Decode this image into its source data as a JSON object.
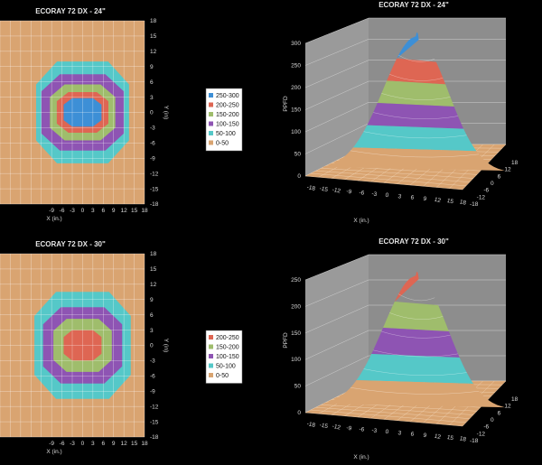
{
  "colors": {
    "band_0_50": "#d9a471",
    "band_50_100": "#55c8c8",
    "band_100_150": "#8e54b3",
    "band_150_200": "#9fbd6c",
    "band_200_250": "#de6653",
    "band_250_300": "#3d8fd6",
    "grid": "#ffffff",
    "wall": "#8d8d8d"
  },
  "chart_data": [
    {
      "type": "heatmap",
      "title": "ECORAY 72 DX - 24\"",
      "xlabel": "X (in.)",
      "ylabel": "Y (in)",
      "x_ticks": [
        "-9",
        "-6",
        "-3",
        "0",
        "3",
        "6",
        "9",
        "12",
        "15",
        "18"
      ],
      "y_ticks": [
        "18",
        "15",
        "12",
        "9",
        "6",
        "3",
        "0",
        "-3",
        "-6",
        "-9",
        "-12",
        "-15",
        "-18"
      ],
      "xlim": [
        -18,
        18
      ],
      "ylim": [
        -18,
        18
      ],
      "contours": [
        {
          "level": "0-50",
          "rx": 99,
          "ry": 99
        },
        {
          "level": "50-100",
          "rx": 13.5,
          "ry": 10
        },
        {
          "level": "100-150",
          "rx": 12,
          "ry": 7.5
        },
        {
          "level": "150-200",
          "rx": 9.5,
          "ry": 5.5
        },
        {
          "level": "200-250",
          "rx": 7.5,
          "ry": 4
        },
        {
          "level": "250-300",
          "rx": 5.5,
          "ry": 2.8
        }
      ]
    },
    {
      "type": "legend",
      "entries": [
        "250-300",
        "200-250",
        "150-200",
        "100-150",
        "50-100",
        "0-50"
      ]
    },
    {
      "type": "area",
      "title": "ECORAY 72 DX - 24\"",
      "zlabel": "PPFD",
      "xlabel": "X (in.)",
      "z_ticks": [
        "0",
        "50",
        "100",
        "150",
        "200",
        "250",
        "300"
      ],
      "x_ticks": [
        "-18",
        "-15",
        "-12",
        "-9",
        "-6",
        "-3",
        "0",
        "3",
        "6",
        "9",
        "12",
        "15",
        "18"
      ],
      "y_ticks": [
        "-18",
        "-12",
        "-6",
        "0",
        "6",
        "12",
        "18"
      ],
      "zlim": [
        0,
        300
      ],
      "peak": 300,
      "bands": [
        "0-50",
        "50-100",
        "100-150",
        "150-200",
        "200-250",
        "250-300"
      ]
    },
    {
      "type": "heatmap",
      "title": "ECORAY 72 DX - 30\"",
      "xlabel": "X (in.)",
      "ylabel": "Y (in)",
      "x_ticks": [
        "-9",
        "-6",
        "-3",
        "0",
        "3",
        "6",
        "9",
        "12",
        "15",
        "18"
      ],
      "y_ticks": [
        "18",
        "15",
        "12",
        "9",
        "6",
        "3",
        "0",
        "-3",
        "-6",
        "-9",
        "-12",
        "-15",
        "-18"
      ],
      "xlim": [
        -18,
        18
      ],
      "ylim": [
        -18,
        18
      ],
      "contours": [
        {
          "level": "0-50",
          "rx": 99,
          "ry": 99
        },
        {
          "level": "50-100",
          "rx": 14,
          "ry": 10.5
        },
        {
          "level": "100-150",
          "rx": 11.5,
          "ry": 7.5
        },
        {
          "level": "150-200",
          "rx": 8.5,
          "ry": 5.2
        },
        {
          "level": "200-250",
          "rx": 5.5,
          "ry": 3
        }
      ]
    },
    {
      "type": "legend",
      "entries": [
        "200-250",
        "150-200",
        "100-150",
        "50-100",
        "0-50"
      ]
    },
    {
      "type": "area",
      "title": "ECORAY 72 DX - 30\"",
      "zlabel": "PPFD",
      "xlabel": "X (in.)",
      "z_ticks": [
        "0",
        "50",
        "100",
        "150",
        "200",
        "250"
      ],
      "x_ticks": [
        "-18",
        "-15",
        "-12",
        "-9",
        "-6",
        "-3",
        "0",
        "3",
        "6",
        "9",
        "12",
        "15",
        "18"
      ],
      "y_ticks": [
        "-18",
        "-12",
        "-6",
        "0",
        "6",
        "12",
        "18"
      ],
      "zlim": [
        0,
        250
      ],
      "peak": 250,
      "bands": [
        "0-50",
        "50-100",
        "100-150",
        "150-200",
        "200-250"
      ]
    }
  ]
}
